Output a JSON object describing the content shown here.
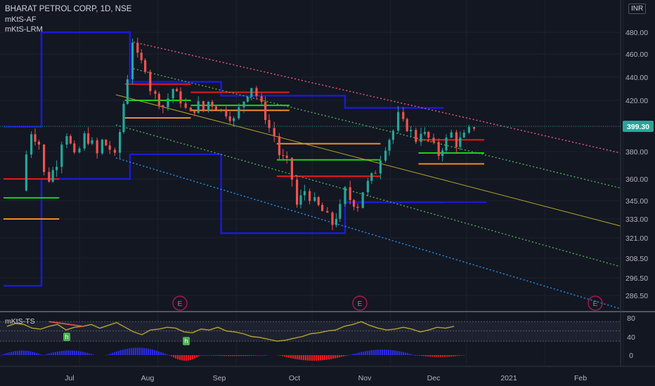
{
  "header": {
    "title": "BHARAT PETROL CORP, 1D, NSE",
    "indicator_1": "mKtS-AF",
    "indicator_2": "mKtS-LRM",
    "currency": "INR"
  },
  "oscillator_label": "mKtS-TS",
  "colors": {
    "background": "#131722",
    "up": "#26a69a",
    "down": "#ef5350",
    "box": "#1a1ad4",
    "resistance": "#e8191c",
    "pivot": "#16d616",
    "support": "#f28c28",
    "upper_channel": "#f05a78",
    "mid_channel": "#4caf50",
    "lower_channel": "#2196f3",
    "regression": "#b5a42c",
    "oscillator_line": "#b5a42c",
    "price_tag": "#26a69a"
  },
  "chart_data": [
    {
      "type": "candlestick",
      "title": "BHARAT PETROL CORP, 1D, NSE",
      "y_axis_ticks": [
        "480.00",
        "460.00",
        "440.00",
        "420.00",
        "399.30",
        "380.00",
        "360.00",
        "345.00",
        "333.00",
        "321.00",
        "308.50",
        "296.50",
        "286.50"
      ],
      "x_axis_ticks": [
        "Jul",
        "Aug",
        "Sep",
        "Oct",
        "Nov",
        "Dec",
        "2021",
        "Feb"
      ],
      "last_price": "399.30",
      "ylim": [
        280,
        492
      ],
      "earnings_markers": [
        "E",
        "E",
        "E"
      ],
      "series": {
        "close_path": [
          [
            "2020-06-08",
            352
          ],
          [
            "2020-06-10",
            378
          ],
          [
            "2020-06-12",
            395
          ],
          [
            "2020-06-15",
            386
          ],
          [
            "2020-06-17",
            364
          ],
          [
            "2020-06-19",
            360
          ],
          [
            "2020-06-22",
            372
          ],
          [
            "2020-06-24",
            388
          ],
          [
            "2020-06-26",
            394
          ],
          [
            "2020-06-29",
            376
          ],
          [
            "2020-07-01",
            382
          ],
          [
            "2020-07-03",
            392
          ],
          [
            "2020-07-06",
            386
          ],
          [
            "2020-07-08",
            378
          ],
          [
            "2020-07-10",
            388
          ],
          [
            "2020-07-13",
            382
          ],
          [
            "2020-07-15",
            376
          ],
          [
            "2020-07-17",
            395
          ],
          [
            "2020-07-20",
            440
          ],
          [
            "2020-07-22",
            472
          ],
          [
            "2020-07-24",
            458
          ],
          [
            "2020-07-27",
            448
          ],
          [
            "2020-07-29",
            430
          ],
          [
            "2020-07-31",
            424
          ],
          [
            "2020-08-03",
            415
          ],
          [
            "2020-08-05",
            422
          ],
          [
            "2020-08-07",
            430
          ],
          [
            "2020-08-10",
            420
          ],
          [
            "2020-08-12",
            413
          ],
          [
            "2020-08-14",
            409
          ],
          [
            "2020-08-17",
            417
          ],
          [
            "2020-08-19",
            412
          ],
          [
            "2020-08-21",
            419
          ],
          [
            "2020-08-24",
            415
          ],
          [
            "2020-08-26",
            412
          ],
          [
            "2020-08-28",
            410
          ],
          [
            "2020-08-31",
            404
          ],
          [
            "2020-09-02",
            413
          ],
          [
            "2020-09-04",
            420
          ],
          [
            "2020-09-07",
            432
          ],
          [
            "2020-09-09",
            424
          ],
          [
            "2020-09-11",
            416
          ],
          [
            "2020-09-14",
            398
          ],
          [
            "2020-09-16",
            392
          ],
          [
            "2020-09-18",
            378
          ],
          [
            "2020-09-21",
            372
          ],
          [
            "2020-09-23",
            360
          ],
          [
            "2020-09-25",
            342
          ],
          [
            "2020-09-28",
            352
          ],
          [
            "2020-09-30",
            348
          ],
          [
            "2020-10-02",
            344
          ],
          [
            "2020-10-05",
            338
          ],
          [
            "2020-10-07",
            334
          ],
          [
            "2020-10-09",
            330
          ],
          [
            "2020-10-12",
            340
          ],
          [
            "2020-10-14",
            352
          ],
          [
            "2020-10-16",
            346
          ],
          [
            "2020-10-19",
            342
          ],
          [
            "2020-10-21",
            352
          ],
          [
            "2020-10-23",
            357
          ],
          [
            "2020-10-26",
            366
          ],
          [
            "2020-10-28",
            376
          ],
          [
            "2020-10-30",
            384
          ],
          [
            "2020-11-02",
            396
          ],
          [
            "2020-11-04",
            408
          ],
          [
            "2020-11-06",
            402
          ],
          [
            "2020-11-09",
            395
          ],
          [
            "2020-11-11",
            389
          ],
          [
            "2020-11-13",
            396
          ],
          [
            "2020-11-16",
            390
          ],
          [
            "2020-11-18",
            384
          ],
          [
            "2020-11-20",
            378
          ],
          [
            "2020-11-23",
            389
          ],
          [
            "2020-11-25",
            394
          ],
          [
            "2020-11-27",
            386
          ],
          [
            "2020-11-30",
            392
          ],
          [
            "2020-12-02",
            396
          ],
          [
            "2020-12-04",
            399.3
          ]
        ],
        "levels": [
          {
            "name": "box_top",
            "segments": [
              [
                "2020-06-01",
                399
              ],
              [
                "2020-06-16",
                399
              ],
              [
                "2020-06-16",
                480
              ],
              [
                "2020-07-21",
                480
              ],
              [
                "2020-07-21",
                436
              ],
              [
                "2020-08-26",
                436
              ],
              [
                "2020-08-26",
                424
              ],
              [
                "2020-10-14",
                424
              ],
              [
                "2020-10-14",
                414
              ],
              [
                "2020-11-22",
                414
              ]
            ]
          },
          {
            "name": "box_bottom",
            "segments": [
              [
                "2020-06-01",
                292
              ],
              [
                "2020-06-16",
                292
              ],
              [
                "2020-06-16",
                360
              ],
              [
                "2020-07-21",
                360
              ],
              [
                "2020-07-21",
                378
              ],
              [
                "2020-08-26",
                378
              ],
              [
                "2020-08-26",
                324
              ],
              [
                "2020-10-14",
                324
              ],
              [
                "2020-10-14",
                344
              ],
              [
                "2020-11-22",
                344
              ]
            ]
          }
        ]
      }
    },
    {
      "type": "line",
      "title": "mKtS-TS",
      "y_axis_ticks": [
        "80",
        "40",
        "0"
      ],
      "ylim": [
        -15,
        90
      ]
    }
  ]
}
